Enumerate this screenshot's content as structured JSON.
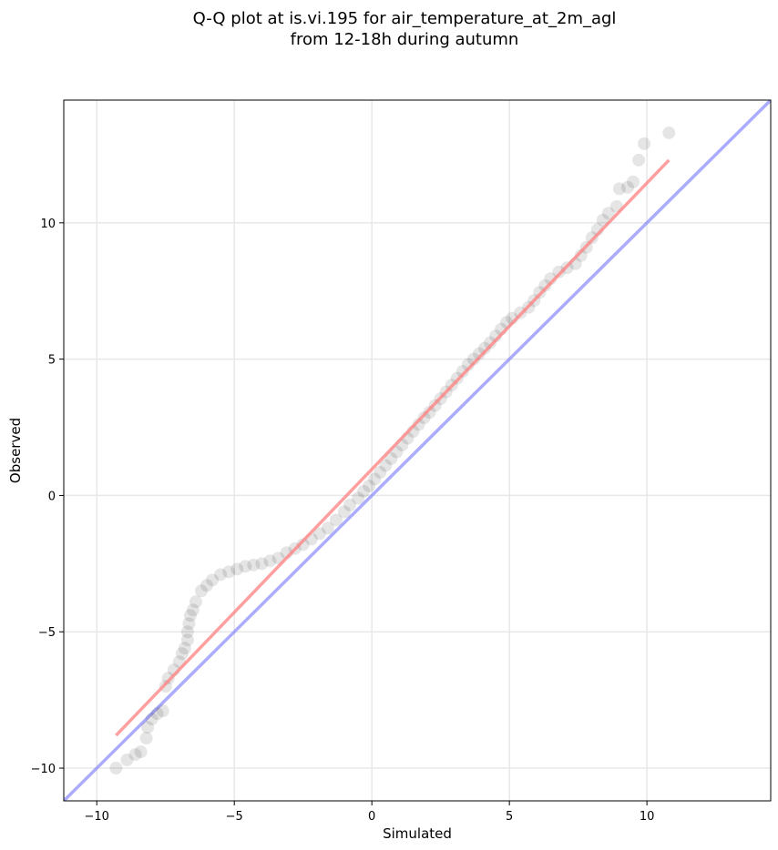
{
  "chart_data": {
    "type": "scatter",
    "title_lines": [
      "Q-Q plot at is.vi.195 for air_temperature_at_2m_agl",
      "from 12-18h during autumn"
    ],
    "xlabel": "Simulated",
    "ylabel": "Observed",
    "xlim": [
      -11.2,
      14.5
    ],
    "ylim": [
      -11.2,
      14.5
    ],
    "x_ticks": [
      -10,
      -5,
      0,
      5,
      10
    ],
    "y_ticks": [
      -10,
      -5,
      0,
      5,
      10
    ],
    "x_tick_labels": [
      "−10",
      "−5",
      "0",
      "5",
      "10"
    ],
    "y_tick_labels": [
      "−10",
      "−5",
      "0",
      "5",
      "10"
    ],
    "grid": true,
    "colors": {
      "points": "#000000",
      "fit_line": "#ff7f7f",
      "identity_line": "#7f7fff",
      "grid": "#e8e8e8"
    },
    "points": [
      [
        -9.3,
        -10.0
      ],
      [
        -8.9,
        -9.7
      ],
      [
        -8.6,
        -9.5
      ],
      [
        -8.4,
        -9.4
      ],
      [
        -8.2,
        -8.9
      ],
      [
        -8.15,
        -8.5
      ],
      [
        -8.0,
        -8.2
      ],
      [
        -7.8,
        -8.0
      ],
      [
        -7.6,
        -7.9
      ],
      [
        -7.5,
        -7.0
      ],
      [
        -7.4,
        -6.7
      ],
      [
        -7.2,
        -6.4
      ],
      [
        -7.0,
        -6.1
      ],
      [
        -6.9,
        -5.8
      ],
      [
        -6.8,
        -5.6
      ],
      [
        -6.7,
        -5.3
      ],
      [
        -6.7,
        -5.0
      ],
      [
        -6.65,
        -4.7
      ],
      [
        -6.6,
        -4.4
      ],
      [
        -6.5,
        -4.2
      ],
      [
        -6.4,
        -3.9
      ],
      [
        -6.2,
        -3.5
      ],
      [
        -6.0,
        -3.3
      ],
      [
        -5.8,
        -3.1
      ],
      [
        -5.5,
        -2.9
      ],
      [
        -5.2,
        -2.8
      ],
      [
        -4.9,
        -2.7
      ],
      [
        -4.6,
        -2.6
      ],
      [
        -4.3,
        -2.55
      ],
      [
        -4.0,
        -2.5
      ],
      [
        -3.7,
        -2.4
      ],
      [
        -3.4,
        -2.3
      ],
      [
        -3.1,
        -2.1
      ],
      [
        -2.8,
        -1.95
      ],
      [
        -2.5,
        -1.8
      ],
      [
        -2.2,
        -1.6
      ],
      [
        -1.9,
        -1.4
      ],
      [
        -1.6,
        -1.2
      ],
      [
        -1.3,
        -0.9
      ],
      [
        -1.0,
        -0.6
      ],
      [
        -0.8,
        -0.35
      ],
      [
        -0.5,
        -0.1
      ],
      [
        -0.3,
        0.15
      ],
      [
        -0.1,
        0.35
      ],
      [
        0.1,
        0.6
      ],
      [
        0.3,
        0.85
      ],
      [
        0.5,
        1.1
      ],
      [
        0.7,
        1.35
      ],
      [
        0.9,
        1.6
      ],
      [
        1.1,
        1.85
      ],
      [
        1.3,
        2.1
      ],
      [
        1.5,
        2.35
      ],
      [
        1.7,
        2.6
      ],
      [
        1.9,
        2.85
      ],
      [
        2.1,
        3.05
      ],
      [
        2.3,
        3.3
      ],
      [
        2.5,
        3.55
      ],
      [
        2.7,
        3.8
      ],
      [
        2.9,
        4.05
      ],
      [
        3.1,
        4.3
      ],
      [
        3.3,
        4.55
      ],
      [
        3.5,
        4.8
      ],
      [
        3.7,
        5.0
      ],
      [
        3.9,
        5.2
      ],
      [
        4.1,
        5.4
      ],
      [
        4.3,
        5.6
      ],
      [
        4.5,
        5.85
      ],
      [
        4.7,
        6.1
      ],
      [
        4.9,
        6.35
      ],
      [
        5.1,
        6.5
      ],
      [
        5.4,
        6.7
      ],
      [
        5.7,
        6.9
      ],
      [
        5.9,
        7.15
      ],
      [
        6.1,
        7.45
      ],
      [
        6.3,
        7.7
      ],
      [
        6.5,
        7.95
      ],
      [
        6.8,
        8.2
      ],
      [
        7.1,
        8.35
      ],
      [
        7.4,
        8.5
      ],
      [
        7.6,
        8.8
      ],
      [
        7.8,
        9.1
      ],
      [
        8.0,
        9.45
      ],
      [
        8.2,
        9.75
      ],
      [
        8.4,
        10.1
      ],
      [
        8.6,
        10.35
      ],
      [
        8.9,
        10.6
      ],
      [
        9.0,
        11.25
      ],
      [
        9.3,
        11.3
      ],
      [
        9.5,
        11.5
      ],
      [
        9.7,
        12.3
      ],
      [
        9.9,
        12.9
      ],
      [
        10.8,
        13.3
      ]
    ],
    "fit_line": [
      [
        -9.3,
        -8.8
      ],
      [
        10.8,
        12.3
      ]
    ],
    "identity_line": [
      [
        -11.2,
        -11.2
      ],
      [
        14.5,
        14.5
      ]
    ]
  }
}
